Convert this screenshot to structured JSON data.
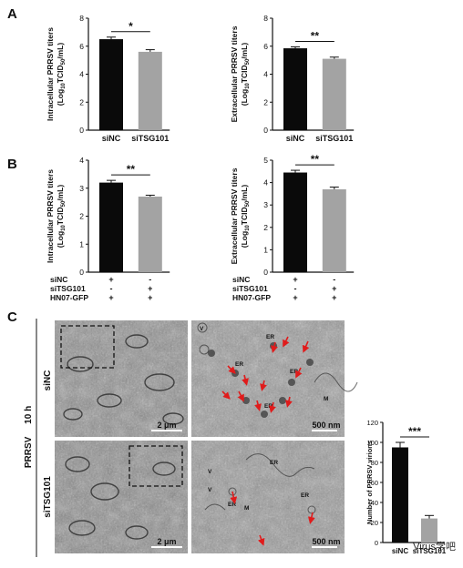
{
  "panel_labels": {
    "a": "A",
    "b": "B",
    "c": "C"
  },
  "chart_data": [
    {
      "id": "A-intracellular",
      "type": "bar",
      "ylabel_line1": "Intracellular PRRSV titers",
      "ylabel_line2_parts": [
        "(Log",
        "10",
        "TCID",
        "50",
        "/mL)"
      ],
      "categories": [
        "siNC",
        "siTSG101"
      ],
      "values": [
        6.5,
        5.6
      ],
      "errors": [
        0.15,
        0.15
      ],
      "colors": [
        "#0a0a0a",
        "#a3a3a3"
      ],
      "ylim": [
        0,
        8
      ],
      "yticks": [
        "0",
        "2",
        "4",
        "6",
        "8"
      ],
      "significance": "*"
    },
    {
      "id": "A-extracellular",
      "type": "bar",
      "ylabel_line1": "Extracellular PRRSV titers",
      "ylabel_line2_parts": [
        "(Log",
        "10",
        "TCID",
        "50",
        "/mL)"
      ],
      "categories": [
        "siNC",
        "siTSG101"
      ],
      "values": [
        5.85,
        5.1
      ],
      "errors": [
        0.1,
        0.12
      ],
      "colors": [
        "#0a0a0a",
        "#a3a3a3"
      ],
      "ylim": [
        0,
        8
      ],
      "yticks": [
        "0",
        "2",
        "4",
        "6",
        "8"
      ],
      "significance": "**"
    },
    {
      "id": "B-intracellular",
      "type": "bar",
      "ylabel_line1": "Intracellular PRRSV titers",
      "ylabel_line2_parts": [
        "(Log",
        "10",
        "TCID",
        "50",
        "/mL)"
      ],
      "values": [
        3.2,
        2.7
      ],
      "errors": [
        0.08,
        0.05
      ],
      "colors": [
        "#0a0a0a",
        "#a3a3a3"
      ],
      "ylim": [
        0,
        4
      ],
      "yticks": [
        "0",
        "1",
        "2",
        "3",
        "4"
      ],
      "significance": "**",
      "conditions": [
        {
          "name": "siNC",
          "marks": [
            "+",
            "-"
          ]
        },
        {
          "name": "siTSG101",
          "marks": [
            "-",
            "+"
          ]
        },
        {
          "name": "HN07-GFP",
          "marks": [
            "+",
            "+"
          ]
        }
      ]
    },
    {
      "id": "B-extracellular",
      "type": "bar",
      "ylabel_line1": "Extracellular PRRSV titers",
      "ylabel_line2_parts": [
        "(Log",
        "10",
        "TCID",
        "50",
        "/mL)"
      ],
      "values": [
        4.45,
        3.7
      ],
      "errors": [
        0.1,
        0.1
      ],
      "colors": [
        "#0a0a0a",
        "#a3a3a3"
      ],
      "ylim": [
        0,
        5
      ],
      "yticks": [
        "0",
        "1",
        "2",
        "3",
        "4",
        "5"
      ],
      "significance": "**",
      "conditions": [
        {
          "name": "siNC",
          "marks": [
            "+",
            "-"
          ]
        },
        {
          "name": "siTSG101",
          "marks": [
            "-",
            "+"
          ]
        },
        {
          "name": "HN07-GFP",
          "marks": [
            "+",
            "+"
          ]
        }
      ]
    },
    {
      "id": "C-virions",
      "type": "bar",
      "ylabel": "Number of PRRSV virions",
      "categories": [
        "siNC",
        "siTSG101"
      ],
      "values": [
        95,
        24
      ],
      "errors": [
        5,
        3
      ],
      "colors": [
        "#0a0a0a",
        "#a3a3a3"
      ],
      "ylim": [
        0,
        120
      ],
      "yticks": [
        "0",
        "20",
        "40",
        "60",
        "80",
        "100",
        "120"
      ],
      "significance": "***"
    }
  ],
  "em": {
    "side_label": "PRRSV     10 h",
    "row_labels": [
      "siNC",
      "siTSG101"
    ],
    "scale_low": "2 μm",
    "scale_high": "500 nm",
    "organelle_labels": [
      "V",
      "ER",
      "ER",
      "ER",
      "M",
      "ER",
      "V",
      "V",
      "ER",
      "M",
      "ER",
      "ER"
    ]
  },
  "watermark": "Virus学吧"
}
